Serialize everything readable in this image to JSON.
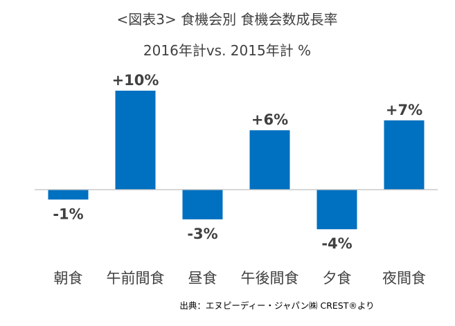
{
  "chart_data": {
    "type": "bar",
    "title": "<図表3> 食機会別 食機会数成長率",
    "subtitle": "2016年計vs. 2015年計 %",
    "categories": [
      "朝食",
      "午前間食",
      "昼食",
      "午後間食",
      "夕食",
      "夜間食"
    ],
    "values": [
      -1,
      10,
      -3,
      6,
      -4,
      7
    ],
    "value_labels": [
      "-1%",
      "+10%",
      "-3%",
      "+6%",
      "-4%",
      "+7%"
    ],
    "ylim": [
      -4.5,
      10.5
    ],
    "grid": false,
    "legend": "none",
    "bar_color": "#0070C0",
    "axis_color": "#BFBFBF"
  },
  "source": "出典：エヌピーディー・ジャパン㈱ CREST®より"
}
